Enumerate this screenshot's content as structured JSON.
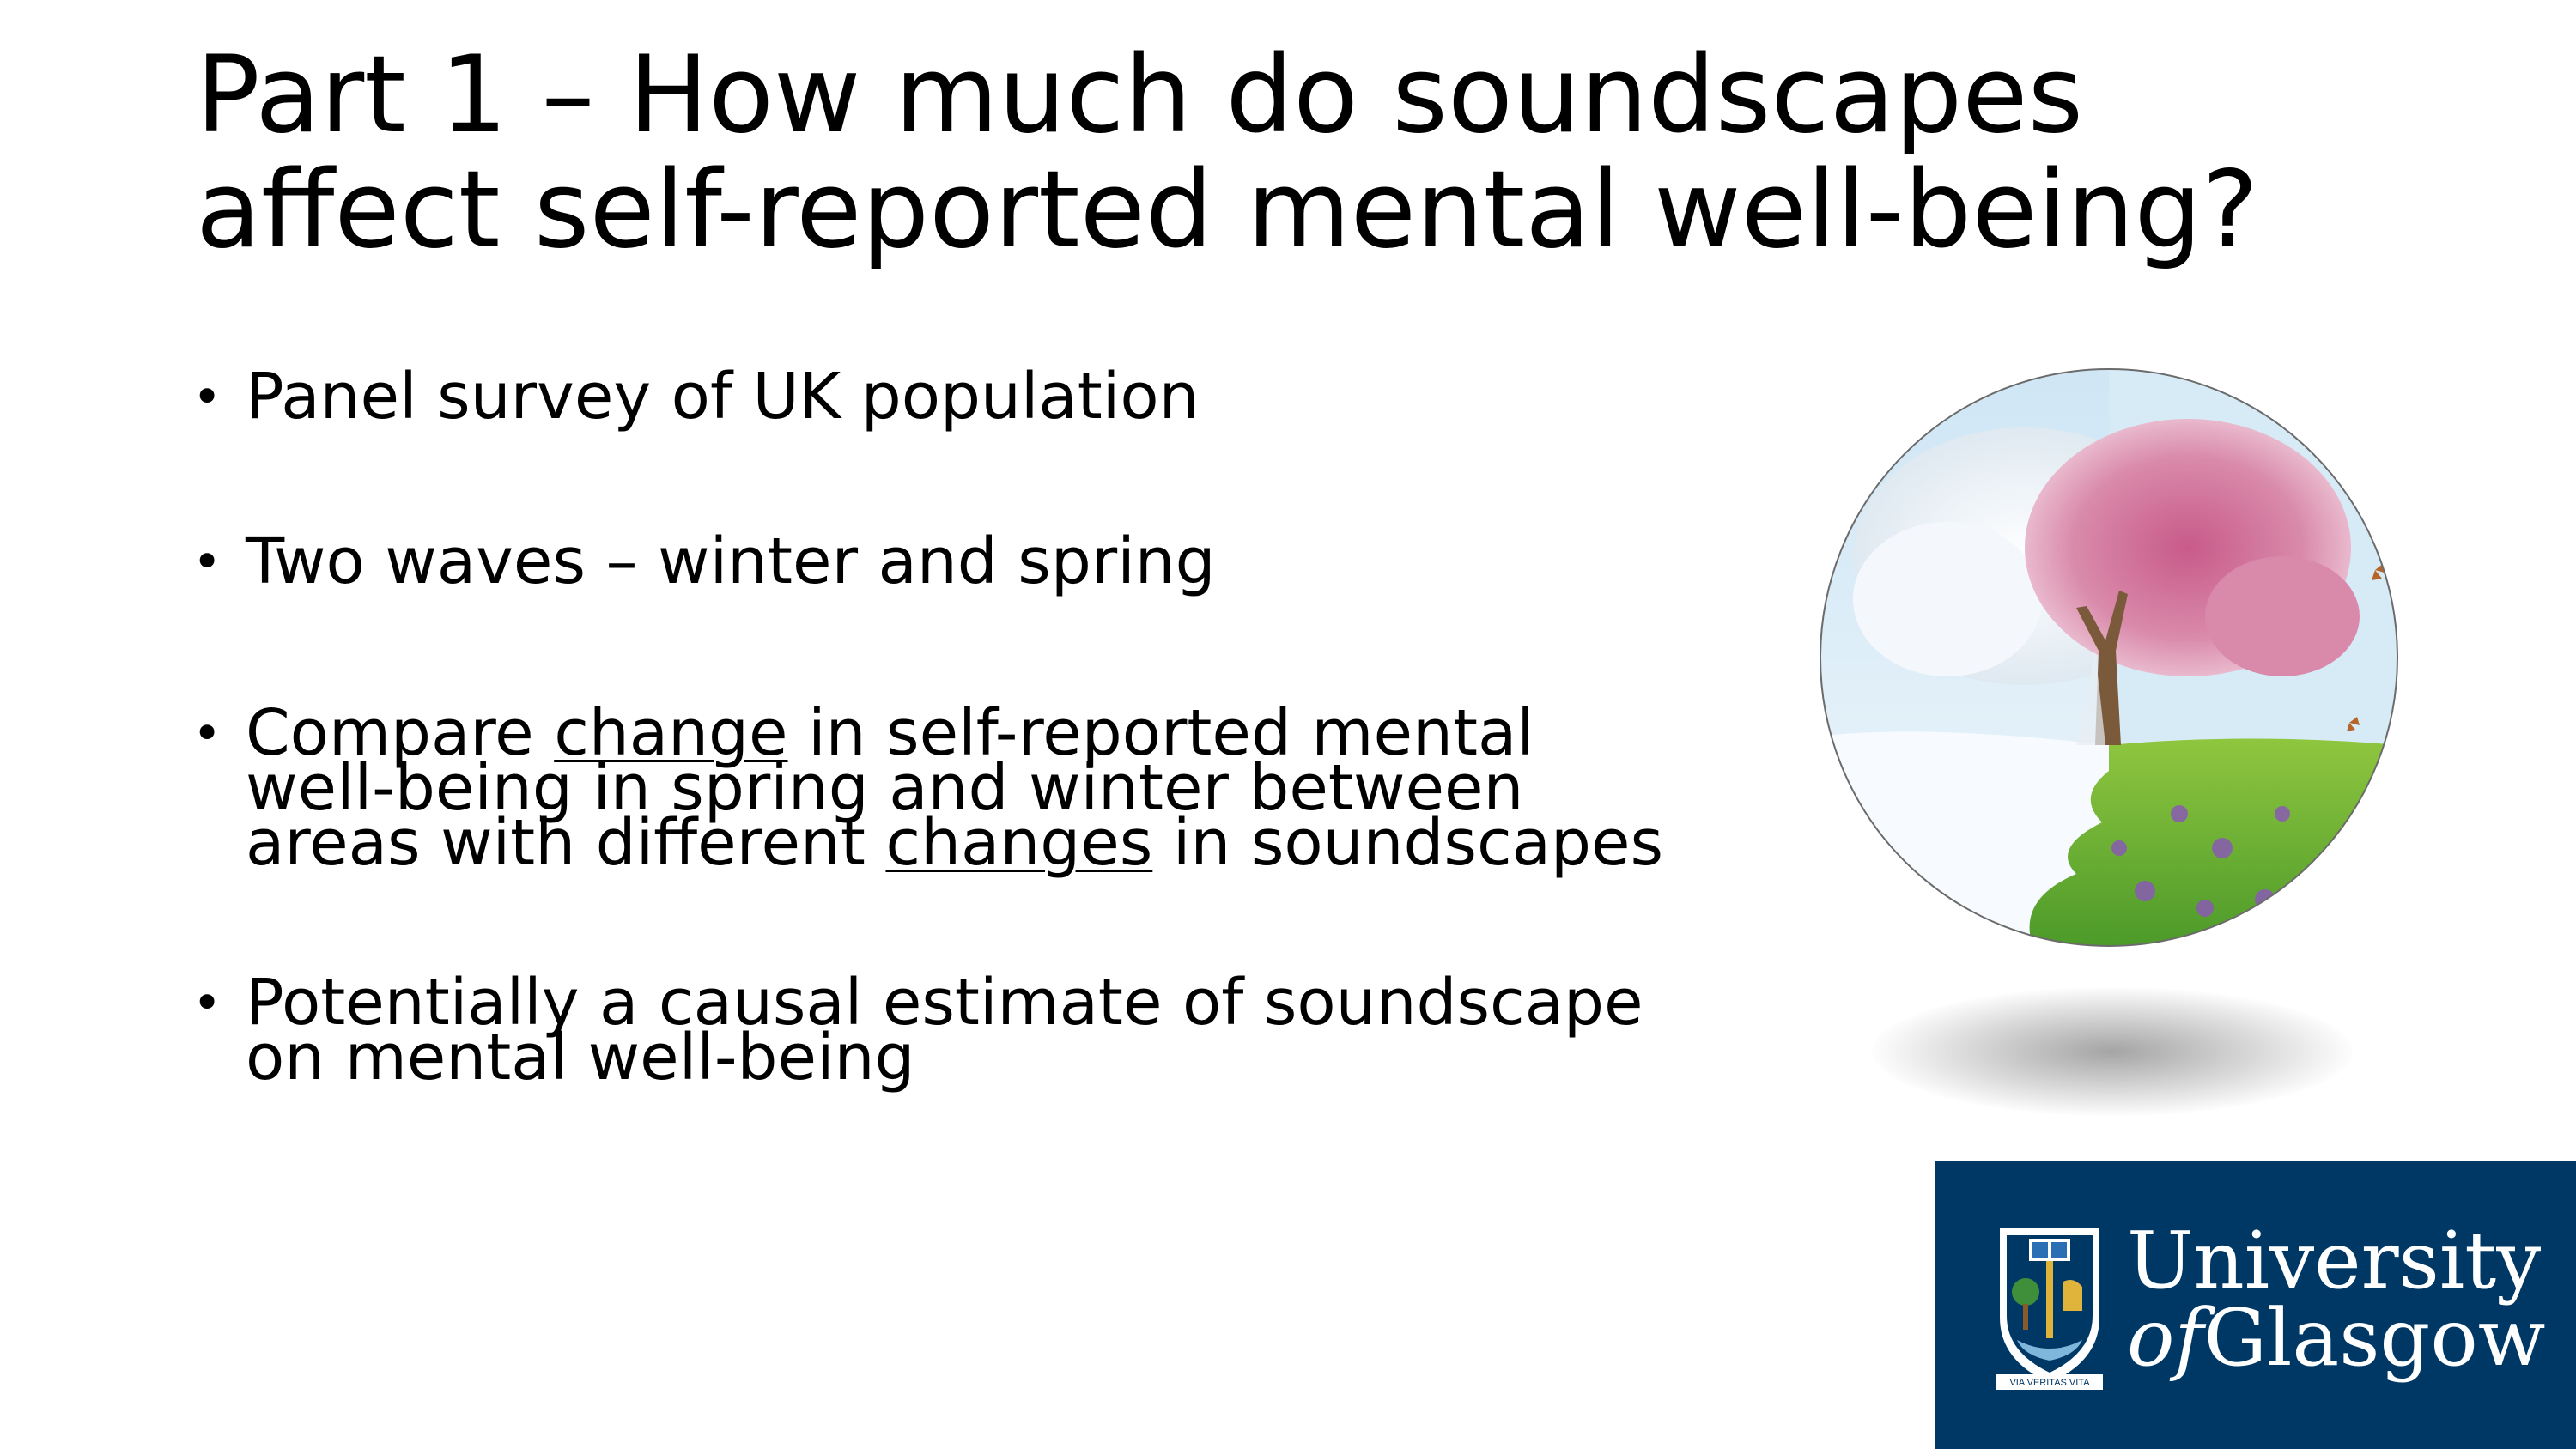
{
  "slide": {
    "title_line1": "Part 1 – How much do soundscapes",
    "title_line2": "affect self-reported mental well-being?",
    "bullet_char": "•",
    "bullets": [
      {
        "text": "Panel survey of UK population"
      },
      {
        "text": "Two waves – winter and spring"
      },
      {
        "p1": "Compare ",
        "u1": "change",
        "p2": " in self-reported mental",
        "line2": "well-being in spring and winter between",
        "p3": "areas with different ",
        "u2": "changes",
        "p4": " in soundscapes"
      },
      {
        "line1": "Potentially a causal estimate of soundscape",
        "line2": "on mental well-being"
      }
    ]
  },
  "image": {
    "icon": "winter-spring-tree-image"
  },
  "logo": {
    "line1": "University",
    "of": "of",
    "glasgow": "Glasgow",
    "motto": "VIA VERITAS VITA",
    "background": "#003865"
  }
}
